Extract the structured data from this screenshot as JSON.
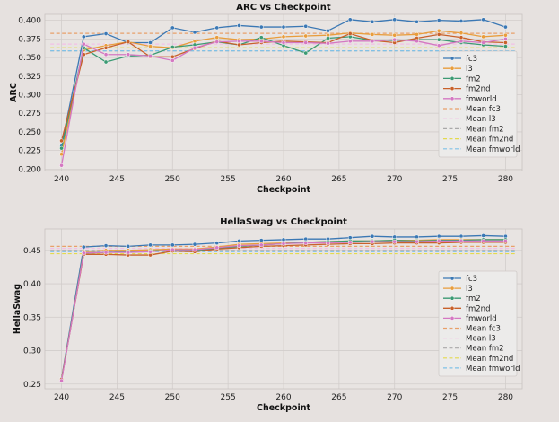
{
  "chart_data": [
    {
      "type": "line",
      "title": "ARC vs Checkpoint",
      "xlabel": "Checkpoint",
      "ylabel": "ARC",
      "xlim": [
        238.5,
        281.5
      ],
      "ylim": [
        0.198,
        0.408
      ],
      "xticks": [
        240,
        245,
        250,
        255,
        260,
        265,
        270,
        275,
        280
      ],
      "xtick_labels": [
        "240",
        "245",
        "250",
        "255",
        "260",
        "265",
        "270",
        "275",
        "280"
      ],
      "yticks": [
        0.2,
        0.225,
        0.25,
        0.275,
        0.3,
        0.325,
        0.35,
        0.375,
        0.4
      ],
      "ytick_labels": [
        "0.200",
        "0.225",
        "0.250",
        "0.275",
        "0.300",
        "0.325",
        "0.350",
        "0.375",
        "0.400"
      ],
      "grid": true,
      "legend_position": "right",
      "x": [
        240,
        242,
        244,
        246,
        248,
        250,
        252,
        254,
        256,
        258,
        260,
        262,
        264,
        266,
        268,
        270,
        272,
        274,
        276,
        278,
        280
      ],
      "series": [
        {
          "name": "fc3",
          "color": "#3b78b4",
          "values": [
            0.232,
            0.378,
            0.382,
            0.37,
            0.37,
            0.39,
            0.384,
            0.39,
            0.393,
            0.391,
            0.391,
            0.392,
            0.386,
            0.401,
            0.398,
            0.401,
            0.398,
            0.4,
            0.399,
            0.401,
            0.391
          ]
        },
        {
          "name": "l3",
          "color": "#e89d3c",
          "values": [
            0.22,
            0.36,
            0.366,
            0.371,
            0.365,
            0.363,
            0.372,
            0.377,
            0.374,
            0.375,
            0.378,
            0.379,
            0.38,
            0.383,
            0.381,
            0.38,
            0.381,
            0.386,
            0.383,
            0.378,
            0.38
          ]
        },
        {
          "name": "fm2",
          "color": "#3b9a73",
          "values": [
            0.228,
            0.363,
            0.344,
            0.352,
            0.353,
            0.364,
            0.367,
            0.371,
            0.367,
            0.377,
            0.366,
            0.356,
            0.376,
            0.378,
            0.373,
            0.373,
            0.374,
            0.374,
            0.37,
            0.367,
            0.365
          ]
        },
        {
          "name": "fm2nd",
          "color": "#c8612b",
          "values": [
            0.238,
            0.354,
            0.363,
            0.371,
            0.351,
            0.351,
            0.362,
            0.372,
            0.367,
            0.37,
            0.372,
            0.371,
            0.37,
            0.382,
            0.373,
            0.37,
            0.376,
            0.381,
            0.377,
            0.371,
            0.37
          ]
        },
        {
          "name": "fmworld",
          "color": "#d478c2",
          "values": [
            0.205,
            0.368,
            0.354,
            0.354,
            0.352,
            0.346,
            0.363,
            0.371,
            0.372,
            0.372,
            0.37,
            0.37,
            0.369,
            0.372,
            0.372,
            0.374,
            0.372,
            0.366,
            0.372,
            0.37,
            0.375
          ]
        }
      ],
      "mean_lines": [
        {
          "name": "Mean fc3",
          "color": "#e8a06a",
          "value": 0.3825
        },
        {
          "name": "Mean l3",
          "color": "#f2bfe6",
          "value": 0.368
        },
        {
          "name": "Mean fm2",
          "color": "#a9a9a9",
          "value": 0.359
        },
        {
          "name": "Mean fm2nd",
          "color": "#e3da4e",
          "value": 0.363
        },
        {
          "name": "Mean fmworld",
          "color": "#7fc1e7",
          "value": 0.359
        }
      ]
    },
    {
      "type": "line",
      "title": "HellaSwag vs Checkpoint",
      "xlabel": "Checkpoint",
      "ylabel": "HellaSwag",
      "xlim": [
        238.5,
        281.5
      ],
      "ylim": [
        0.243,
        0.482
      ],
      "xticks": [
        240,
        245,
        250,
        255,
        260,
        265,
        270,
        275,
        280
      ],
      "xtick_labels": [
        "240",
        "245",
        "250",
        "255",
        "260",
        "265",
        "270",
        "275",
        "280"
      ],
      "yticks": [
        0.25,
        0.3,
        0.35,
        0.4,
        0.45
      ],
      "ytick_labels": [
        "0.25",
        "0.30",
        "0.35",
        "0.40",
        "0.45"
      ],
      "grid": true,
      "legend_position": "right",
      "x": [
        240,
        242,
        244,
        246,
        248,
        250,
        252,
        254,
        256,
        258,
        260,
        262,
        264,
        266,
        268,
        270,
        272,
        274,
        276,
        278,
        280
      ],
      "series": [
        {
          "name": "fc3",
          "color": "#3b78b4",
          "values": [
            0.258,
            0.455,
            0.457,
            0.456,
            0.458,
            0.458,
            0.459,
            0.461,
            0.464,
            0.465,
            0.466,
            0.467,
            0.467,
            0.469,
            0.471,
            0.47,
            0.47,
            0.471,
            0.471,
            0.472,
            0.471
          ]
        },
        {
          "name": "l3",
          "color": "#e89d3c",
          "values": [
            0.256,
            0.448,
            0.45,
            0.45,
            0.451,
            0.452,
            0.452,
            0.455,
            0.459,
            0.46,
            0.461,
            0.462,
            0.463,
            0.464,
            0.464,
            0.465,
            0.465,
            0.466,
            0.466,
            0.466,
            0.466
          ]
        },
        {
          "name": "fm2",
          "color": "#3b9a73",
          "values": [
            0.257,
            0.446,
            0.447,
            0.448,
            0.449,
            0.45,
            0.45,
            0.453,
            0.456,
            0.458,
            0.46,
            0.462,
            0.463,
            0.464,
            0.464,
            0.465,
            0.464,
            0.465,
            0.465,
            0.466,
            0.466
          ]
        },
        {
          "name": "fm2nd",
          "color": "#c8612b",
          "values": [
            0.257,
            0.444,
            0.444,
            0.443,
            0.443,
            0.449,
            0.448,
            0.452,
            0.454,
            0.456,
            0.457,
            0.458,
            0.459,
            0.46,
            0.46,
            0.461,
            0.461,
            0.461,
            0.462,
            0.462,
            0.462
          ]
        },
        {
          "name": "fmworld",
          "color": "#d478c2",
          "values": [
            0.255,
            0.446,
            0.447,
            0.447,
            0.448,
            0.451,
            0.451,
            0.454,
            0.457,
            0.458,
            0.46,
            0.461,
            0.461,
            0.462,
            0.463,
            0.463,
            0.463,
            0.464,
            0.464,
            0.464,
            0.464
          ]
        }
      ],
      "mean_lines": [
        {
          "name": "Mean fc3",
          "color": "#e8a06a",
          "value": 0.456
        },
        {
          "name": "Mean l3",
          "color": "#f2bfe6",
          "value": 0.453
        },
        {
          "name": "Mean fm2",
          "color": "#a9a9a9",
          "value": 0.45
        },
        {
          "name": "Mean fm2nd",
          "color": "#e3da4e",
          "value": 0.445
        },
        {
          "name": "Mean fmworld",
          "color": "#7fc1e7",
          "value": 0.448
        }
      ]
    }
  ]
}
